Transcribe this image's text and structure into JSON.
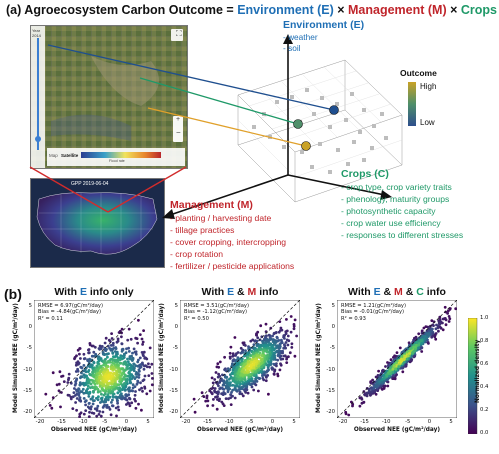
{
  "panel_a": {
    "label": "(a)",
    "title_prefix": "Agroecosystem Carbon Outcome = ",
    "title_env": "Environment (E)",
    "title_times1": " × ",
    "title_mgmt": "Management (M)",
    "title_times2": " × ",
    "title_crops": "Crops (C)",
    "map_inset": {
      "year_label": "Year",
      "year_value": "2014",
      "map_btn": "Map",
      "satellite_btn": "Satellite",
      "legend_caption": "Flood rate",
      "gpp_label": "GPP 2019-06-04"
    },
    "environment": {
      "header": "Environment (E)",
      "items": [
        "- weather",
        "- soil"
      ]
    },
    "outcome_legend": {
      "title": "Outcome",
      "high": "High",
      "low": "Low"
    },
    "management": {
      "header": "Management (M)",
      "items": [
        "- planting / harvesting date",
        "- tillage practices",
        "- cover cropping, intercropping",
        "- crop rotation",
        "- fertilizer / pesticide applications"
      ]
    },
    "crops": {
      "header": "Crops (C)",
      "items": [
        "- crop type, crop variety traits",
        "- phenology, maturity groups",
        "- photosynthetic capacity",
        "- crop water use efficiency",
        "- responses to different stresses"
      ]
    },
    "colors": {
      "environment": "#1f6fb5",
      "management": "#c0252b",
      "crops": "#1f9968",
      "outcome_high": "#c9a227",
      "outcome_low": "#2e4e8c"
    }
  },
  "panel_b": {
    "label": "(b)",
    "plots": [
      {
        "title_pre": "With ",
        "title_e": "E",
        "title_amp1": "",
        "title_m": "",
        "title_amp2": "",
        "title_c": "",
        "title_post": " info only",
        "stats": [
          "RMSE = 6.97(gC/m²/day)",
          "Bias = -4.84(gC/m²/day)",
          "R² = 0.11"
        ]
      },
      {
        "title_pre": "With ",
        "title_e": "E",
        "title_amp1": " & ",
        "title_m": "M",
        "title_amp2": "",
        "title_c": "",
        "title_post": " info",
        "stats": [
          "RMSE = 3.51(gC/m²/day)",
          "Bias = -1.12(gC/m²/day)",
          "R² = 0.50"
        ]
      },
      {
        "title_pre": "With ",
        "title_e": "E",
        "title_amp1": " & ",
        "title_m": "M",
        "title_amp2": " & ",
        "title_c": "C",
        "title_post": " info",
        "stats": [
          "RMSE = 1.21(gC/m²/day)",
          "Bias = -0.01(gC/m²/day)",
          "R² = 0.93"
        ]
      }
    ],
    "xlabel": "Observed NEE (gC/m²/day)",
    "ylabel": "Model Simulated NEE (gC/m²/day)",
    "ticks": [
      "-20",
      "-15",
      "-10",
      "-5",
      "0",
      "5"
    ],
    "colorbar": {
      "label": "Normalized density",
      "ticks": [
        "1.0",
        "0.8",
        "0.6",
        "0.4",
        "0.2",
        "0.0"
      ]
    }
  }
}
